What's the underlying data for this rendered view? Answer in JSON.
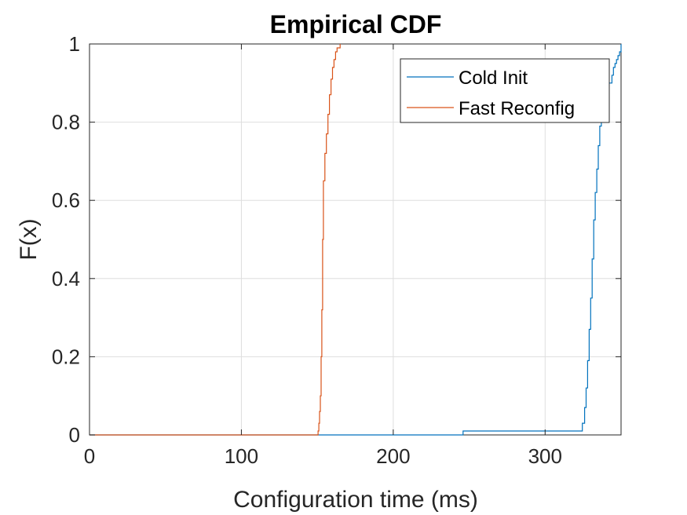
{
  "chart_data": {
    "type": "line",
    "title": "Empirical CDF",
    "xlabel": "Configuration time (ms)",
    "ylabel": "F(x)",
    "xlim": [
      0,
      350
    ],
    "ylim": [
      0,
      1
    ],
    "x_ticks": [
      0,
      100,
      200,
      300
    ],
    "x_tick_labels": [
      "0",
      "100",
      "200",
      "300"
    ],
    "y_ticks": [
      0,
      0.2,
      0.4,
      0.6,
      0.8,
      1
    ],
    "y_tick_labels": [
      "0",
      "0.2",
      "0.4",
      "0.6",
      "0.8",
      "1"
    ],
    "grid": true,
    "legend_position": "top-right",
    "series": [
      {
        "name": "Cold Init",
        "color": "#0072BD",
        "x": [
          0,
          246,
          246,
          324,
          324.5,
          326,
          327,
          328,
          329,
          330,
          331,
          332,
          333,
          334,
          335,
          336,
          337,
          338,
          339,
          340,
          342,
          344,
          345,
          346,
          347,
          348,
          349,
          350,
          350
        ],
        "y": [
          0,
          0,
          0.01,
          0.01,
          0.03,
          0.07,
          0.12,
          0.19,
          0.27,
          0.35,
          0.45,
          0.55,
          0.62,
          0.68,
          0.74,
          0.79,
          0.82,
          0.84,
          0.86,
          0.88,
          0.9,
          0.92,
          0.94,
          0.95,
          0.96,
          0.97,
          0.98,
          0.99,
          1.0
        ]
      },
      {
        "name": "Fast Reconfig",
        "color": "#D95319",
        "x": [
          0,
          150,
          150.5,
          151,
          151.5,
          152,
          152.5,
          153,
          153.5,
          154,
          155,
          156,
          157,
          158,
          159,
          160,
          161,
          162,
          163,
          165
        ],
        "y": [
          0,
          0,
          0.01,
          0.03,
          0.06,
          0.1,
          0.2,
          0.32,
          0.5,
          0.65,
          0.72,
          0.77,
          0.82,
          0.87,
          0.91,
          0.94,
          0.96,
          0.98,
          0.99,
          1.0
        ]
      }
    ]
  }
}
